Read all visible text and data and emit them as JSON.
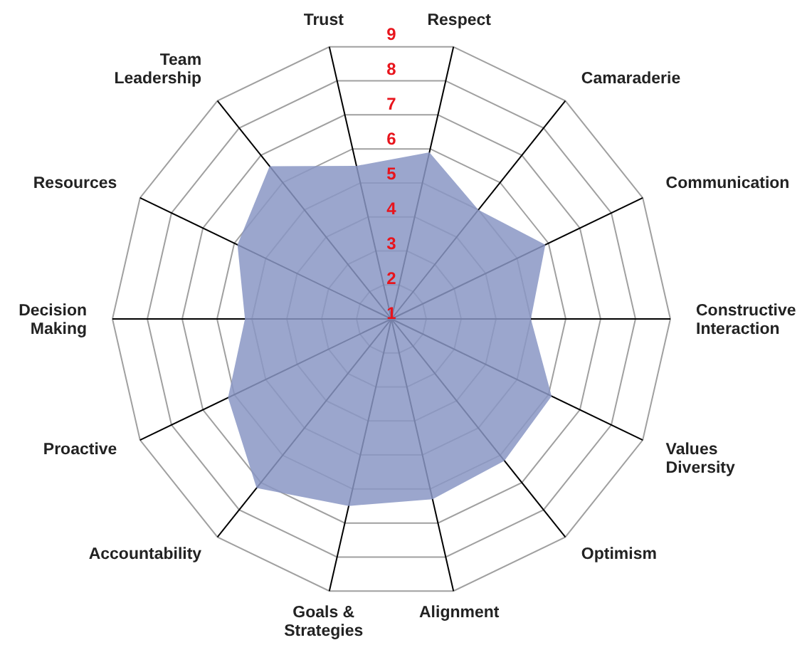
{
  "chart_data": {
    "type": "radar",
    "categories": [
      "Respect",
      "Camaraderie",
      "Communication",
      "Constructive Interaction",
      "Values Diversity",
      "Optimism",
      "Alignment",
      "Goals & Strategies",
      "Accountability",
      "Proactive",
      "Decision Making",
      "Resources",
      "Team Leadership",
      "Trust"
    ],
    "series": [
      {
        "color": "#8a96c4",
        "values": [
          5.9,
          5.0,
          5.9,
          5.0,
          6.1,
          6.2,
          6.3,
          6.5,
          7.2,
          6.2,
          5.2,
          5.9,
          6.6,
          5.5
        ]
      }
    ],
    "ylim": [
      1,
      9
    ],
    "yticks": [
      1,
      2,
      3,
      4,
      5,
      6,
      7,
      8,
      9
    ],
    "grid": true,
    "legend": false
  }
}
